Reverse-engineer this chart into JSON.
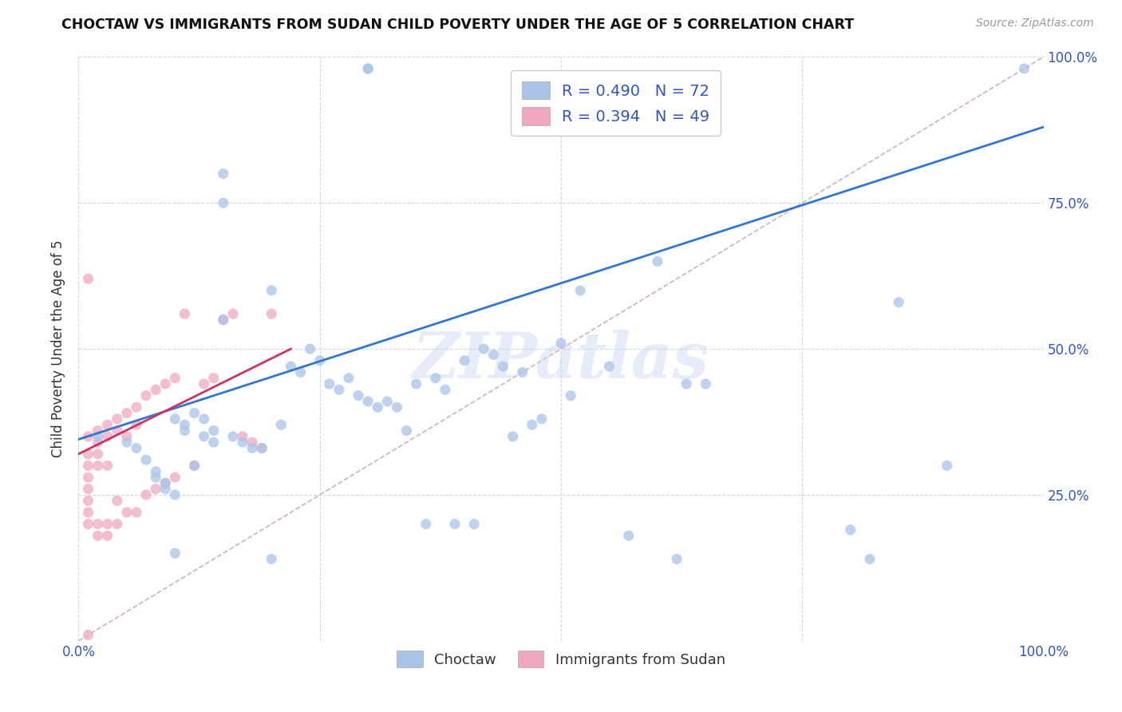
{
  "title": "CHOCTAW VS IMMIGRANTS FROM SUDAN CHILD POVERTY UNDER THE AGE OF 5 CORRELATION CHART",
  "source": "Source: ZipAtlas.com",
  "ylabel": "Child Poverty Under the Age of 5",
  "xlim": [
    0,
    1.0
  ],
  "ylim": [
    0,
    1.0
  ],
  "blue_R": 0.49,
  "blue_N": 72,
  "pink_R": 0.394,
  "pink_N": 49,
  "legend_label_blue": "Choctaw",
  "legend_label_pink": "Immigrants from Sudan",
  "blue_color": "#aac4e8",
  "pink_color": "#f0a8bf",
  "blue_line_color": "#3377cc",
  "pink_line_color": "#cc3366",
  "diagonal_color": "#ccaaaa",
  "watermark": "ZIPatlas",
  "blue_scatter_x": [
    0.02,
    0.05,
    0.06,
    0.07,
    0.08,
    0.08,
    0.09,
    0.09,
    0.1,
    0.1,
    0.11,
    0.11,
    0.12,
    0.12,
    0.13,
    0.13,
    0.14,
    0.14,
    0.15,
    0.15,
    0.16,
    0.17,
    0.18,
    0.19,
    0.2,
    0.21,
    0.22,
    0.23,
    0.24,
    0.25,
    0.26,
    0.27,
    0.28,
    0.29,
    0.3,
    0.31,
    0.32,
    0.33,
    0.34,
    0.35,
    0.36,
    0.37,
    0.38,
    0.39,
    0.4,
    0.41,
    0.42,
    0.43,
    0.44,
    0.45,
    0.46,
    0.47,
    0.48,
    0.5,
    0.51,
    0.52,
    0.55,
    0.57,
    0.6,
    0.62,
    0.65,
    0.3,
    0.3,
    0.15,
    0.85,
    0.9,
    0.98,
    0.8,
    0.82,
    0.63,
    0.2,
    0.1
  ],
  "blue_scatter_y": [
    0.35,
    0.34,
    0.33,
    0.31,
    0.29,
    0.28,
    0.27,
    0.26,
    0.25,
    0.38,
    0.37,
    0.36,
    0.39,
    0.3,
    0.38,
    0.35,
    0.36,
    0.34,
    0.8,
    0.75,
    0.35,
    0.34,
    0.33,
    0.33,
    0.6,
    0.37,
    0.47,
    0.46,
    0.5,
    0.48,
    0.44,
    0.43,
    0.45,
    0.42,
    0.41,
    0.4,
    0.41,
    0.4,
    0.36,
    0.44,
    0.2,
    0.45,
    0.43,
    0.2,
    0.48,
    0.2,
    0.5,
    0.49,
    0.47,
    0.35,
    0.46,
    0.37,
    0.38,
    0.51,
    0.42,
    0.6,
    0.47,
    0.18,
    0.65,
    0.14,
    0.44,
    0.98,
    0.98,
    0.55,
    0.58,
    0.3,
    0.98,
    0.19,
    0.14,
    0.44,
    0.14,
    0.15
  ],
  "pink_scatter_x": [
    0.01,
    0.01,
    0.01,
    0.01,
    0.01,
    0.01,
    0.01,
    0.01,
    0.01,
    0.02,
    0.02,
    0.02,
    0.02,
    0.02,
    0.02,
    0.03,
    0.03,
    0.03,
    0.03,
    0.03,
    0.04,
    0.04,
    0.04,
    0.04,
    0.05,
    0.05,
    0.05,
    0.06,
    0.06,
    0.06,
    0.07,
    0.07,
    0.08,
    0.08,
    0.09,
    0.09,
    0.1,
    0.1,
    0.11,
    0.12,
    0.13,
    0.14,
    0.15,
    0.16,
    0.17,
    0.18,
    0.19,
    0.2,
    0.01
  ],
  "pink_scatter_y": [
    0.35,
    0.32,
    0.3,
    0.28,
    0.26,
    0.24,
    0.22,
    0.2,
    0.01,
    0.36,
    0.34,
    0.32,
    0.3,
    0.2,
    0.18,
    0.37,
    0.35,
    0.3,
    0.2,
    0.18,
    0.38,
    0.36,
    0.24,
    0.2,
    0.39,
    0.35,
    0.22,
    0.4,
    0.37,
    0.22,
    0.42,
    0.25,
    0.43,
    0.26,
    0.44,
    0.27,
    0.45,
    0.28,
    0.56,
    0.3,
    0.44,
    0.45,
    0.55,
    0.56,
    0.35,
    0.34,
    0.33,
    0.56,
    0.62
  ],
  "blue_line_x0": 0.0,
  "blue_line_y0": 0.345,
  "blue_line_x1": 1.0,
  "blue_line_y1": 0.88,
  "pink_line_x0": 0.0,
  "pink_line_y0": 0.32,
  "pink_line_x1": 0.22,
  "pink_line_y1": 0.5
}
